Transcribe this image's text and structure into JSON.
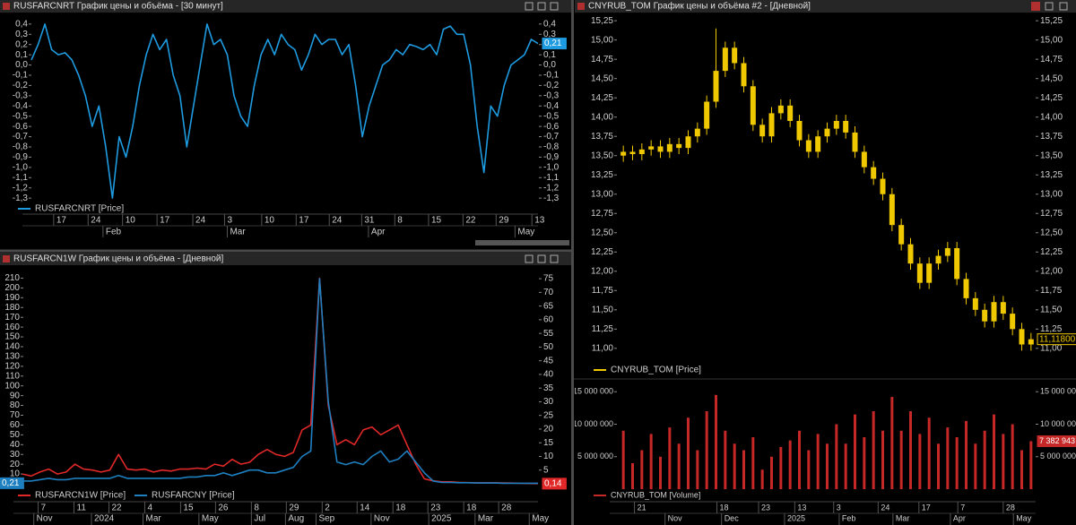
{
  "chart_data": [
    {
      "type": "line",
      "title": "RUSFARCNRT График цены и объёма - [30 минут]",
      "xlim": [
        0,
        75
      ],
      "xticks": [
        {
          "value": 3.3,
          "label": "17"
        },
        {
          "value": 8.4,
          "label": "24"
        },
        {
          "value": 13.5,
          "label": "10"
        },
        {
          "value": 18.6,
          "label": "17"
        },
        {
          "value": 23.9,
          "label": "24"
        },
        {
          "value": 28.6,
          "label": "3"
        },
        {
          "value": 34.1,
          "label": "10"
        },
        {
          "value": 39.2,
          "label": "17"
        },
        {
          "value": 44.1,
          "label": "24"
        },
        {
          "value": 48.9,
          "label": "31"
        },
        {
          "value": 53.8,
          "label": "8"
        },
        {
          "value": 58.8,
          "label": "15"
        },
        {
          "value": 63.9,
          "label": "22"
        },
        {
          "value": 68.8,
          "label": "29"
        },
        {
          "value": 74.1,
          "label": "13"
        }
      ],
      "xticks2": [
        {
          "value": 10.6,
          "label": "Feb"
        },
        {
          "value": 29.0,
          "label": "Mar"
        },
        {
          "value": 49.9,
          "label": "Apr"
        },
        {
          "value": 71.6,
          "label": "May"
        }
      ],
      "ylim": [
        -1.36,
        0.46
      ],
      "yticks": [
        {
          "value": 0.4,
          "label": "0,4"
        },
        {
          "value": 0.3,
          "label": "0,3"
        },
        {
          "value": 0.2,
          "label": "0,2"
        },
        {
          "value": 0.1,
          "label": "0,1"
        },
        {
          "value": 0,
          "label": "0,0"
        },
        {
          "value": -0.1,
          "label": "-0,1"
        },
        {
          "value": -0.2,
          "label": "-0,2"
        },
        {
          "value": -0.3,
          "label": "-0,3"
        },
        {
          "value": -0.4,
          "label": "-0,4"
        },
        {
          "value": -0.5,
          "label": "-0,5"
        },
        {
          "value": -0.6,
          "label": "-0,6"
        },
        {
          "value": -0.7,
          "label": "-0,7"
        },
        {
          "value": -0.8,
          "label": "-0,8"
        },
        {
          "value": -0.9,
          "label": "-0,9"
        },
        {
          "value": -1,
          "label": "-1,0"
        },
        {
          "value": -1.1,
          "label": "-1,1"
        },
        {
          "value": -1.2,
          "label": "-1,2"
        },
        {
          "value": -1.3,
          "label": "-1,3"
        }
      ],
      "series": [
        {
          "name": "RUSFARCNRT [Price]",
          "color": "#1e9be0",
          "values": [
            0.05,
            0.2,
            0.4,
            0.15,
            0.1,
            0.12,
            0.05,
            -0.1,
            -0.3,
            -0.6,
            -0.4,
            -0.8,
            -1.3,
            -0.7,
            -0.9,
            -0.6,
            -0.2,
            0.1,
            0.3,
            0.15,
            0.25,
            -0.1,
            -0.3,
            -0.8,
            -0.4,
            0.0,
            0.4,
            0.2,
            0.25,
            0.1,
            -0.3,
            -0.5,
            -0.6,
            -0.2,
            0.1,
            0.25,
            0.1,
            0.3,
            0.2,
            0.15,
            -0.05,
            0.1,
            0.3,
            0.2,
            0.25,
            0.25,
            0.1,
            0.2,
            -0.2,
            -0.7,
            -0.4,
            -0.2,
            0.0,
            0.05,
            0.15,
            0.1,
            0.2,
            0.18,
            0.15,
            0.2,
            0.1,
            0.35,
            0.38,
            0.3,
            0.3,
            0.0,
            -0.6,
            -1.05,
            -0.4,
            -0.5,
            -0.2,
            0.0,
            0.05,
            0.1,
            0.25,
            0.21
          ],
          "last_label": {
            "value": 0.21,
            "label": "0,21"
          }
        }
      ]
    },
    {
      "type": "line",
      "title": "RUSFARCN1W График цены и объёма - [Дневной]",
      "xlim": [
        0,
        59
      ],
      "xticks": [
        {
          "value": 1.8,
          "label": "7"
        },
        {
          "value": 5.9,
          "label": "11"
        },
        {
          "value": 9.9,
          "label": "22"
        },
        {
          "value": 14.0,
          "label": "4"
        },
        {
          "value": 18.1,
          "label": "15"
        },
        {
          "value": 22.1,
          "label": "26"
        },
        {
          "value": 26.2,
          "label": "8"
        },
        {
          "value": 30.2,
          "label": "29"
        },
        {
          "value": 34.3,
          "label": "2"
        },
        {
          "value": 38.3,
          "label": "14"
        },
        {
          "value": 42.4,
          "label": "18"
        },
        {
          "value": 46.4,
          "label": "23"
        },
        {
          "value": 50.5,
          "label": "18"
        },
        {
          "value": 54.5,
          "label": "28"
        }
      ],
      "xticks2": [
        {
          "value": 1.3,
          "label": "Nov"
        },
        {
          "value": 7.9,
          "label": "2024"
        },
        {
          "value": 13.8,
          "label": "Mar"
        },
        {
          "value": 20.2,
          "label": "May"
        },
        {
          "value": 26.2,
          "label": "Jul"
        },
        {
          "value": 30.1,
          "label": "Aug"
        },
        {
          "value": 33.6,
          "label": "Sep"
        },
        {
          "value": 39.9,
          "label": "Nov"
        },
        {
          "value": 46.5,
          "label": "2025"
        },
        {
          "value": 51.8,
          "label": "Mar"
        },
        {
          "value": 58.0,
          "label": "May"
        }
      ],
      "ylim": [
        0,
        215
      ],
      "yticks": [
        10,
        20,
        30,
        40,
        50,
        60,
        70,
        80,
        90,
        100,
        110,
        120,
        130,
        140,
        150,
        160,
        170,
        180,
        190,
        200,
        210
      ],
      "y2lim": [
        0,
        77
      ],
      "y2ticks": [
        5,
        10,
        15,
        20,
        25,
        30,
        35,
        40,
        45,
        50,
        55,
        60,
        65,
        70,
        75
      ],
      "series": [
        {
          "name": "RUSFARCN1W [Price]",
          "color": "#e02828",
          "values": [
            10,
            8,
            12,
            15,
            10,
            12,
            20,
            15,
            14,
            12,
            14,
            30,
            15,
            14,
            15,
            12,
            14,
            13,
            15,
            15,
            16,
            15,
            20,
            18,
            25,
            20,
            22,
            30,
            35,
            30,
            28,
            32,
            55,
            60,
            210,
            80,
            40,
            45,
            40,
            55,
            58,
            50,
            55,
            60,
            40,
            20,
            5,
            3,
            2,
            2,
            1.5,
            1.2,
            1,
            1,
            1,
            0.8,
            0.7,
            0.5,
            0.3,
            0.14
          ],
          "last_label": {
            "value": 0.14,
            "label": "0,14"
          }
        },
        {
          "name": "RUSFARCNY [Price]",
          "color": "#1e7fc0",
          "axis": "y2",
          "values": [
            1,
            1,
            1.5,
            2,
            1.5,
            1.5,
            2,
            2,
            2,
            2,
            2,
            3,
            2,
            2,
            2,
            2,
            2,
            2,
            2,
            2.5,
            2.5,
            3,
            3,
            4,
            3,
            4,
            5,
            5,
            4,
            4,
            5,
            6,
            10,
            12,
            75,
            30,
            8,
            7,
            8,
            7,
            10,
            12,
            8,
            9,
            12,
            8,
            4,
            1,
            0.5,
            0.5,
            0.4,
            0.4,
            0.3,
            0.3,
            0.3,
            0.2,
            0.2,
            0.2,
            0.2,
            0.21
          ],
          "last_label": {
            "value": 0.21,
            "label": "0,21"
          }
        }
      ]
    },
    {
      "type": "candlestick",
      "title": "CNYRUB_TOM График цены и объёма #2 - [Дневной]",
      "xlim": [
        0,
        45
      ],
      "ylim": [
        10.87,
        15.31
      ],
      "yticks": [
        {
          "value": 15.25,
          "label": "15,25"
        },
        {
          "value": 15,
          "label": "15,00"
        },
        {
          "value": 14.75,
          "label": "14,75"
        },
        {
          "value": 14.5,
          "label": "14,50"
        },
        {
          "value": 14.25,
          "label": "14,25"
        },
        {
          "value": 14,
          "label": "14,00"
        },
        {
          "value": 13.75,
          "label": "13,75"
        },
        {
          "value": 13.5,
          "label": "13,50"
        },
        {
          "value": 13.25,
          "label": "13,25"
        },
        {
          "value": 13,
          "label": "13,00"
        },
        {
          "value": 12.75,
          "label": "12,75"
        },
        {
          "value": 12.5,
          "label": "12,50"
        },
        {
          "value": 12.25,
          "label": "12,25"
        },
        {
          "value": 12,
          "label": "12,00"
        },
        {
          "value": 11.75,
          "label": "11,75"
        },
        {
          "value": 11.5,
          "label": "11,50"
        },
        {
          "value": 11.25,
          "label": "11,25"
        },
        {
          "value": 11,
          "label": "11,00"
        }
      ],
      "series": [
        {
          "name": "CNYRUB_TOM [Price]",
          "color": "#f0c800",
          "open": [
            13.5,
            13.55,
            13.52,
            13.58,
            13.62,
            13.55,
            13.65,
            13.6,
            13.75,
            13.85,
            14.2,
            14.6,
            14.9,
            14.7,
            14.4,
            13.9,
            13.75,
            14.05,
            14.15,
            13.95,
            13.7,
            13.55,
            13.75,
            13.85,
            13.95,
            13.8,
            13.55,
            13.35,
            13.2,
            13.0,
            12.6,
            12.35,
            12.1,
            11.85,
            12.1,
            12.2,
            12.3,
            11.9,
            11.65,
            11.5,
            11.35,
            11.6,
            11.45,
            11.25,
            11.05
          ],
          "high": [
            13.63,
            13.63,
            13.66,
            13.7,
            13.7,
            13.73,
            13.73,
            13.83,
            13.93,
            14.28,
            15.15,
            14.98,
            14.98,
            14.78,
            14.48,
            13.98,
            14.13,
            14.23,
            14.23,
            14.03,
            13.78,
            13.83,
            13.93,
            14.03,
            14.03,
            13.88,
            13.63,
            13.43,
            13.28,
            13.08,
            12.68,
            12.43,
            12.18,
            12.18,
            12.28,
            12.38,
            12.38,
            11.98,
            11.73,
            11.58,
            11.68,
            11.68,
            11.53,
            11.33,
            11.2
          ],
          "low": [
            13.42,
            13.44,
            13.44,
            13.5,
            13.47,
            13.47,
            13.52,
            13.52,
            13.67,
            13.77,
            14.12,
            14.52,
            14.62,
            14.32,
            13.82,
            13.67,
            13.67,
            13.97,
            13.87,
            13.62,
            13.47,
            13.47,
            13.67,
            13.77,
            13.72,
            13.47,
            13.27,
            13.12,
            12.92,
            12.52,
            12.27,
            12.02,
            11.77,
            11.77,
            12.02,
            12.12,
            11.82,
            11.57,
            11.42,
            11.27,
            11.27,
            11.37,
            11.17,
            10.97,
            10.97
          ],
          "close": [
            13.55,
            13.52,
            13.58,
            13.62,
            13.55,
            13.65,
            13.6,
            13.75,
            13.85,
            14.2,
            14.6,
            14.9,
            14.7,
            14.4,
            13.9,
            13.75,
            14.05,
            14.15,
            13.95,
            13.7,
            13.55,
            13.75,
            13.85,
            13.95,
            13.8,
            13.55,
            13.35,
            13.2,
            13.0,
            12.6,
            12.35,
            12.1,
            11.85,
            12.1,
            12.2,
            12.3,
            11.9,
            11.65,
            11.5,
            11.35,
            11.6,
            11.45,
            11.25,
            11.05,
            11.118
          ],
          "last_label": {
            "value": 11.118,
            "label": "11,11800"
          }
        }
      ]
    },
    {
      "type": "bar",
      "xlim": [
        0,
        45
      ],
      "xticks": [
        {
          "value": 1.7,
          "label": "21"
        },
        {
          "value": 10.6,
          "label": "18"
        },
        {
          "value": 15.1,
          "label": "23"
        },
        {
          "value": 19.0,
          "label": "13"
        },
        {
          "value": 23.2,
          "label": "3"
        },
        {
          "value": 28.0,
          "label": "24"
        },
        {
          "value": 32.4,
          "label": "17"
        },
        {
          "value": 36.6,
          "label": "7"
        },
        {
          "value": 41.5,
          "label": "28"
        }
      ],
      "xticks2": [
        {
          "value": 5.0,
          "label": "Nov"
        },
        {
          "value": 11.1,
          "label": "Dec"
        },
        {
          "value": 17.9,
          "label": "2025"
        },
        {
          "value": 23.8,
          "label": "Feb"
        },
        {
          "value": 29.6,
          "label": "Mar"
        },
        {
          "value": 35.8,
          "label": "Apr"
        },
        {
          "value": 42.6,
          "label": "May"
        }
      ],
      "ylim": [
        0,
        16000000
      ],
      "yticks": [
        {
          "value": 15000000,
          "label": "15 000 000"
        },
        {
          "value": 10000000,
          "label": "10 000 000"
        },
        {
          "value": 5000000,
          "label": "5 000 000"
        }
      ],
      "series": [
        {
          "name": "CNYRUB_TOM [Volume]",
          "color": "#c62828",
          "values": [
            9000000,
            4000000,
            6000000,
            8500000,
            5000000,
            9500000,
            7000000,
            11000000,
            6000000,
            12000000,
            14500000,
            9000000,
            7000000,
            6000000,
            8000000,
            3000000,
            5000000,
            6500000,
            7500000,
            9000000,
            6000000,
            8500000,
            7000000,
            10000000,
            7000000,
            11500000,
            8000000,
            12000000,
            9000000,
            14200000,
            9000000,
            12000000,
            8500000,
            11000000,
            7000000,
            9500000,
            8000000,
            10500000,
            7000000,
            9000000,
            11500000,
            8500000,
            10000000,
            6000000,
            7382943
          ],
          "last_label": {
            "value": 7382943,
            "label": "7 382 943"
          }
        }
      ]
    }
  ]
}
